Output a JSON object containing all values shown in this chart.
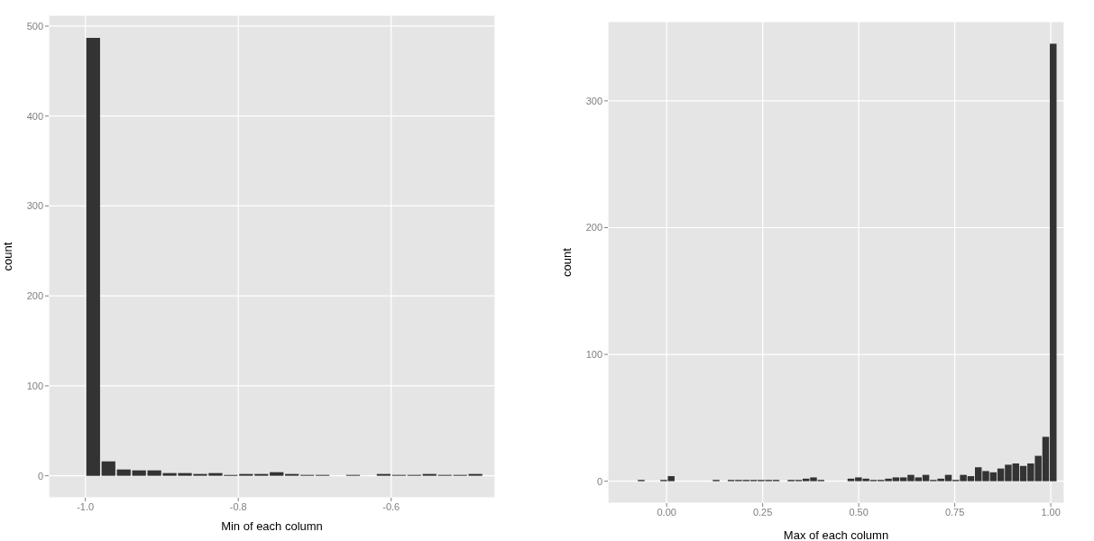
{
  "chart_data": [
    {
      "type": "histogram",
      "xlabel": "Min of each column",
      "ylabel": "count",
      "color": "#333333",
      "bins": [
        -1.0,
        -0.98,
        -0.96,
        -0.94,
        -0.92,
        -0.9,
        -0.88,
        -0.86,
        -0.84,
        -0.82,
        -0.8,
        -0.78,
        -0.76,
        -0.74,
        -0.72,
        -0.7,
        -0.68,
        -0.66,
        -0.64,
        -0.62,
        -0.6,
        -0.58,
        -0.56,
        -0.54,
        -0.52,
        -0.5,
        -0.48
      ],
      "values": [
        487,
        16,
        7,
        6,
        6,
        3,
        3,
        2,
        3,
        1,
        2,
        2,
        4,
        2,
        1,
        1,
        0,
        1,
        0,
        2,
        1,
        1,
        2,
        1,
        1,
        2
      ],
      "xlim": [
        -1.048,
        -0.464
      ],
      "xticks": [
        {
          "value": -1.0,
          "label": "-1.0"
        },
        {
          "value": -0.8,
          "label": "-0.8"
        },
        {
          "value": -0.6,
          "label": "-0.6"
        }
      ],
      "ylim": [
        -24.4,
        512
      ],
      "yticks": [
        0,
        100,
        200,
        300,
        400,
        500
      ],
      "grid": true
    },
    {
      "type": "histogram",
      "xlabel": "Max of each column",
      "ylabel": "count",
      "color": "#333333",
      "bins": [
        -0.075,
        -0.0555,
        -0.036,
        -0.0165,
        0.003,
        0.0225,
        0.042,
        0.0615,
        0.081,
        0.1005,
        0.12,
        0.1395,
        0.159,
        0.1785,
        0.198,
        0.2175,
        0.237,
        0.2565,
        0.276,
        0.2955,
        0.315,
        0.3345,
        0.354,
        0.3735,
        0.393,
        0.4125,
        0.432,
        0.4515,
        0.471,
        0.4905,
        0.51,
        0.5295,
        0.549,
        0.5685,
        0.588,
        0.6075,
        0.627,
        0.6465,
        0.666,
        0.6855,
        0.705,
        0.7245,
        0.744,
        0.7635,
        0.783,
        0.8025,
        0.822,
        0.8415,
        0.861,
        0.8805,
        0.9,
        0.9195,
        0.939,
        0.9585,
        0.978,
        0.9975,
        1.017
      ],
      "values": [
        1,
        0,
        0,
        1,
        4,
        0,
        0,
        0,
        0,
        0,
        1,
        0,
        1,
        1,
        1,
        1,
        1,
        1,
        1,
        0,
        1,
        1,
        2,
        3,
        1,
        0,
        0,
        0,
        2,
        3,
        2,
        1,
        1,
        2,
        3,
        3,
        5,
        3,
        5,
        1,
        2,
        5,
        1,
        5,
        4,
        11,
        8,
        7,
        10,
        13,
        14,
        12,
        14,
        20,
        35,
        345
      ],
      "xlim": [
        -0.153,
        1.035
      ],
      "xticks": [
        {
          "value": 0,
          "label": "0.00"
        },
        {
          "value": 0.25,
          "label": "0.25"
        },
        {
          "value": 0.5,
          "label": "0.50"
        },
        {
          "value": 0.75,
          "label": "0.75"
        },
        {
          "value": 1,
          "label": "1.00"
        }
      ],
      "ylim": [
        -17.3,
        362.5
      ],
      "yticks": [
        0,
        100,
        200,
        300
      ],
      "grid": true
    }
  ]
}
